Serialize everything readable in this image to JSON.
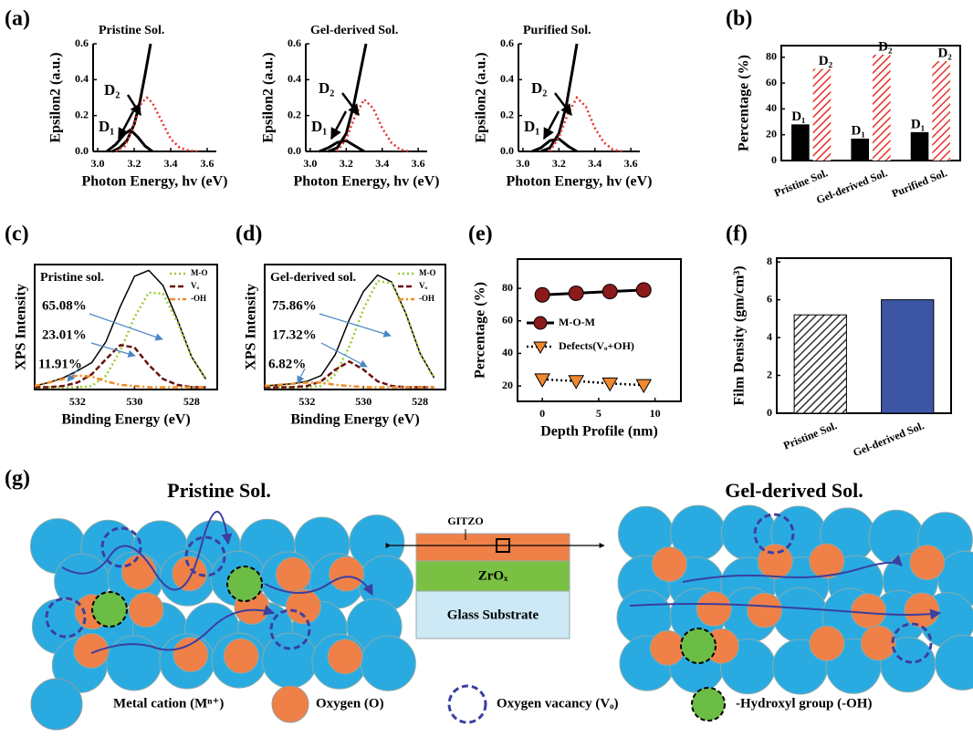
{
  "chart_data": [
    {
      "type": "line",
      "panel": "(a)",
      "title": "Pristine Sol.",
      "x_label": "Photon Energy, hv (eV)",
      "y_label": "Epsilon2 (a.u.)",
      "xlim": [
        2.975,
        3.65
      ],
      "xticks": [
        {
          "value": 3,
          "label": "3.0"
        },
        {
          "value": 3.2,
          "label": "3.2"
        },
        {
          "value": 3.4,
          "label": "3.4"
        },
        {
          "value": 3.6,
          "label": "3.6"
        }
      ],
      "ylim": [
        0,
        0.6
      ],
      "yticks": [
        {
          "value": 0,
          "label": "0.0"
        },
        {
          "value": 0.2,
          "label": "0.2"
        },
        {
          "value": 0.4,
          "label": "0.4"
        },
        {
          "value": 0.6,
          "label": "0.6"
        }
      ],
      "series": [
        {
          "color": "#000000",
          "width": 3,
          "x": [
            3.08,
            3.12,
            3.16,
            3.2,
            3.23,
            3.26,
            3.29
          ],
          "values": [
            0,
            0.02,
            0.06,
            0.15,
            0.27,
            0.43,
            0.6
          ]
        },
        {
          "name": "D₁",
          "color": "#000000",
          "width": 3,
          "x": [
            3.05,
            3.1,
            3.15,
            3.18,
            3.22,
            3.26,
            3.3
          ],
          "values": [
            0,
            0.04,
            0.1,
            0.12,
            0.08,
            0.03,
            0
          ]
        },
        {
          "name": "D₂",
          "color": "#e8302a",
          "width": 2.5,
          "dash": "dotted",
          "x": [
            3.1,
            3.15,
            3.2,
            3.24,
            3.27,
            3.3,
            3.35,
            3.4,
            3.45,
            3.5,
            3.55
          ],
          "values": [
            0,
            0.03,
            0.15,
            0.27,
            0.3,
            0.27,
            0.17,
            0.07,
            0.02,
            0.005,
            0
          ]
        }
      ]
    },
    {
      "type": "line",
      "title": "Gel-derived Sol.",
      "x_label": "Photon Energy, hv (eV)",
      "y_label": "Epsilon2 (a.u.)",
      "xlim": [
        2.975,
        3.65
      ],
      "xticks": [
        {
          "value": 3,
          "label": "3.0"
        },
        {
          "value": 3.2,
          "label": "3.2"
        },
        {
          "value": 3.4,
          "label": "3.4"
        },
        {
          "value": 3.6,
          "label": "3.6"
        }
      ],
      "ylim": [
        0,
        0.6
      ],
      "yticks": [
        {
          "value": 0,
          "label": "0.0"
        },
        {
          "value": 0.2,
          "label": "0.2"
        },
        {
          "value": 0.4,
          "label": "0.4"
        },
        {
          "value": 0.6,
          "label": "0.6"
        }
      ],
      "series": [
        {
          "color": "#000000",
          "width": 3,
          "x": [
            3.1,
            3.15,
            3.2,
            3.24,
            3.28,
            3.31
          ],
          "values": [
            0,
            0.02,
            0.1,
            0.25,
            0.45,
            0.6
          ]
        },
        {
          "name": "D₁",
          "color": "#000000",
          "width": 3,
          "x": [
            3.05,
            3.1,
            3.15,
            3.2,
            3.25,
            3.3
          ],
          "values": [
            0,
            0.02,
            0.05,
            0.06,
            0.03,
            0
          ]
        },
        {
          "name": "D₂",
          "color": "#e8302a",
          "width": 2.5,
          "dash": "dotted",
          "x": [
            3.15,
            3.2,
            3.25,
            3.3,
            3.35,
            3.4,
            3.45,
            3.5,
            3.55
          ],
          "values": [
            0,
            0.07,
            0.2,
            0.29,
            0.24,
            0.13,
            0.05,
            0.01,
            0
          ]
        }
      ]
    },
    {
      "type": "line",
      "title": "Purified Sol.",
      "x_label": "Photon Energy, hv (eV)",
      "y_label": "Epsilon2 (a.u.)",
      "xlim": [
        2.975,
        3.65
      ],
      "xticks": [
        {
          "value": 3,
          "label": "3.0"
        },
        {
          "value": 3.2,
          "label": "3.2"
        },
        {
          "value": 3.4,
          "label": "3.4"
        },
        {
          "value": 3.6,
          "label": "3.6"
        }
      ],
      "ylim": [
        0,
        0.6
      ],
      "yticks": [
        {
          "value": 0,
          "label": "0.0"
        },
        {
          "value": 0.2,
          "label": "0.2"
        },
        {
          "value": 0.4,
          "label": "0.4"
        },
        {
          "value": 0.6,
          "label": "0.6"
        }
      ],
      "series": [
        {
          "color": "#000000",
          "width": 3,
          "x": [
            3.1,
            3.15,
            3.2,
            3.24,
            3.28,
            3.3
          ],
          "values": [
            0,
            0.02,
            0.1,
            0.25,
            0.48,
            0.6
          ]
        },
        {
          "name": "D₁",
          "color": "#000000",
          "width": 3,
          "x": [
            3.05,
            3.1,
            3.15,
            3.2,
            3.25,
            3.3
          ],
          "values": [
            0,
            0.02,
            0.06,
            0.07,
            0.03,
            0
          ]
        },
        {
          "name": "D₂",
          "color": "#e8302a",
          "width": 2.5,
          "dash": "dotted",
          "x": [
            3.15,
            3.2,
            3.25,
            3.3,
            3.35,
            3.4,
            3.45,
            3.5,
            3.55
          ],
          "values": [
            0,
            0.08,
            0.21,
            0.3,
            0.25,
            0.13,
            0.05,
            0.01,
            0
          ]
        }
      ]
    },
    {
      "type": "bar",
      "panel": "(b)",
      "y_label": "Percentage (%)",
      "categories": [
        "Pristine Sol.",
        "Gel-derived Sol.",
        "Purified Sol."
      ],
      "ylim": [
        0,
        89
      ],
      "yticks": [
        0,
        20,
        40,
        60,
        80
      ],
      "series": [
        {
          "name": "D₁",
          "color": "#000000",
          "values": [
            28,
            17,
            22
          ]
        },
        {
          "name": "D₂",
          "color": "#e8302a",
          "hatch": true,
          "values": [
            71,
            82,
            77
          ]
        }
      ]
    },
    {
      "type": "line",
      "panel": "(c)",
      "title": "Pristine sol.",
      "x_label": "Binding Energy (eV)",
      "y_label": "XPS Intensity",
      "xlim": [
        533.5,
        527.1
      ],
      "xticks": [
        532,
        530,
        528
      ],
      "ylim": [
        -0.02,
        1.05
      ],
      "legend": "top-right",
      "x": [
        533.5,
        533,
        532.5,
        532,
        531.5,
        531,
        530.5,
        530,
        529.5,
        529,
        528.5,
        528,
        527.5
      ],
      "series": [
        {
          "color": "#000000",
          "width": 1.5,
          "values": [
            0.01,
            0.04,
            0.08,
            0.14,
            0.21,
            0.39,
            0.69,
            0.95,
            1.0,
            0.87,
            0.58,
            0.26,
            0.07
          ]
        },
        {
          "name": "M-O",
          "color": "#9acd32",
          "width": 2.5,
          "dash": "dotted",
          "values": [
            0,
            0,
            0,
            0,
            0.01,
            0.1,
            0.31,
            0.6,
            0.81,
            0.8,
            0.56,
            0.26,
            0.07
          ]
        },
        {
          "name": "Vₒ",
          "color": "#6b0f0f",
          "width": 2.5,
          "dash": "dashed",
          "values": [
            0,
            0,
            0.01,
            0.04,
            0.11,
            0.24,
            0.36,
            0.34,
            0.19,
            0.07,
            0.02,
            0,
            0
          ]
        },
        {
          "name": "-OH",
          "color": "#f08a24",
          "width": 2.5,
          "dash": "dashdot",
          "values": [
            0.01,
            0.04,
            0.07,
            0.1,
            0.09,
            0.05,
            0.02,
            0.01,
            0,
            0,
            0,
            0,
            0
          ]
        }
      ],
      "annotations": [
        "65.08%",
        "23.01%",
        "11.91%"
      ]
    },
    {
      "type": "line",
      "panel": "(d)",
      "title": "Gel-derived sol.",
      "x_label": "Binding Energy (eV)",
      "y_label": "XPS Intensity",
      "xlim": [
        533.5,
        527.1
      ],
      "xticks": [
        532,
        530,
        528
      ],
      "ylim": [
        -0.02,
        1.05
      ],
      "legend": "top-right",
      "x": [
        533.5,
        533,
        532.5,
        532,
        531.5,
        531,
        530.5,
        530,
        529.5,
        529,
        528.5,
        528,
        527.5
      ],
      "series": [
        {
          "color": "#000000",
          "width": 1.5,
          "values": [
            0.01,
            0.02,
            0.03,
            0.05,
            0.1,
            0.28,
            0.58,
            0.82,
            0.96,
            0.9,
            0.63,
            0.29,
            0.08
          ]
        },
        {
          "name": "M-O",
          "color": "#9acd32",
          "width": 2.5,
          "dash": "dotted",
          "values": [
            0,
            0,
            0,
            0,
            0.01,
            0.11,
            0.35,
            0.67,
            0.91,
            0.89,
            0.63,
            0.29,
            0.08
          ]
        },
        {
          "name": "Vₒ",
          "color": "#6b0f0f",
          "width": 2.5,
          "dash": "dashed",
          "values": [
            0,
            0,
            0,
            0.01,
            0.05,
            0.15,
            0.22,
            0.15,
            0.05,
            0.01,
            0,
            0,
            0
          ]
        },
        {
          "name": "-OH",
          "color": "#f08a24",
          "width": 2.5,
          "dash": "dashdot",
          "values": [
            0.01,
            0.02,
            0.03,
            0.04,
            0.04,
            0.02,
            0.01,
            0,
            0,
            0,
            0,
            0,
            0
          ]
        }
      ],
      "annotations": [
        "75.86%",
        "17.32%",
        "6.82%"
      ]
    },
    {
      "type": "line",
      "panel": "(e)",
      "x_label": "Depth Profile (nm)",
      "y_label": "Percentage (%)",
      "xlim": [
        -2.2,
        12.3
      ],
      "xticks": [
        0,
        5,
        10
      ],
      "ylim": [
        10.5,
        98
      ],
      "yticks": [
        20,
        40,
        60,
        80
      ],
      "legend": "center-left",
      "x": [
        0,
        3,
        6,
        9
      ],
      "series": [
        {
          "name": "M-O-M",
          "color": "#000000",
          "width": 3,
          "marker": "circle",
          "marker_color": "#8b1a1a",
          "values": [
            76,
            77,
            78,
            79
          ]
        },
        {
          "name": "Defects(Vₒ+OH)",
          "color": "#000000",
          "width": 2.5,
          "dash": "dotted",
          "marker": "triangle-down",
          "marker_color": "#f0892e",
          "values": [
            24,
            23,
            21.5,
            20.5
          ]
        }
      ]
    },
    {
      "type": "bar",
      "panel": "(f)",
      "y_label": "Film Density (gm/cm³)",
      "categories": [
        "Pristine Sol.",
        "Gel-derived Sol."
      ],
      "values": [
        5.2,
        6
      ],
      "colors": [
        "#ffffff",
        "#3c55a5"
      ],
      "hatch": [
        true,
        false
      ],
      "ylim": [
        0,
        8.2
      ],
      "yticks": [
        0,
        2,
        4,
        6,
        8
      ]
    }
  ],
  "diagram": {
    "panel": "(g)",
    "left_title": "Pristine Sol.",
    "right_title": "Gel-derived Sol.",
    "stack": {
      "top_label": "GITZO",
      "layers": [
        "ZrOₓ",
        "Glass Substrate"
      ]
    },
    "legend": [
      "Metal cation (Mⁿ⁺)",
      "Oxygen (O)",
      "Oxygen vacancy (Vₒ)",
      "-Hydroxyl group (-OH)"
    ]
  }
}
